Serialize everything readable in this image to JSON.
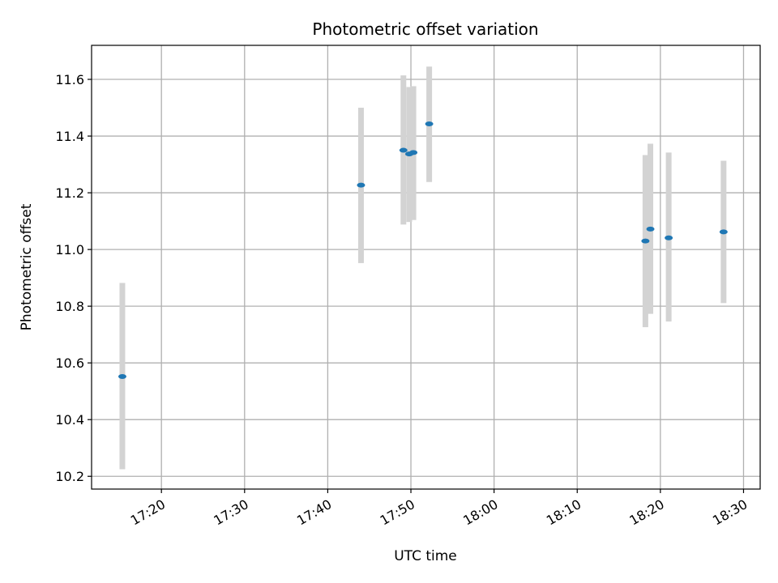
{
  "chart_data": {
    "type": "scatter",
    "title": "Photometric offset variation",
    "xlabel": "UTC time",
    "ylabel": "Photometric offset",
    "x_unit": "minutes since 17:00 UTC",
    "xlim": [
      11.6,
      92.0
    ],
    "ylim": [
      10.155,
      11.72
    ],
    "grid": true,
    "x_ticks": [
      {
        "value": 20,
        "label": "17:20"
      },
      {
        "value": 30,
        "label": "17:30"
      },
      {
        "value": 40,
        "label": "17:40"
      },
      {
        "value": 50,
        "label": "17:50"
      },
      {
        "value": 60,
        "label": "18:00"
      },
      {
        "value": 70,
        "label": "18:10"
      },
      {
        "value": 80,
        "label": "18:20"
      },
      {
        "value": 90,
        "label": "18:30"
      }
    ],
    "y_ticks": [
      {
        "value": 10.2,
        "label": "10.2"
      },
      {
        "value": 10.4,
        "label": "10.4"
      },
      {
        "value": 10.6,
        "label": "10.6"
      },
      {
        "value": 10.8,
        "label": "10.8"
      },
      {
        "value": 11.0,
        "label": "11.0"
      },
      {
        "value": 11.2,
        "label": "11.2"
      },
      {
        "value": 11.4,
        "label": "11.4"
      },
      {
        "value": 11.6,
        "label": "11.6"
      }
    ],
    "series": [
      {
        "name": "Photometric offset",
        "color": "#1f77b4",
        "error_color": "#d3d3d3",
        "points": [
          {
            "x": 15.3,
            "y": 10.552,
            "yerr_low": 10.225,
            "yerr_high": 10.882
          },
          {
            "x": 44.0,
            "y": 11.227,
            "yerr_low": 10.952,
            "yerr_high": 11.5
          },
          {
            "x": 49.1,
            "y": 11.35,
            "yerr_low": 11.088,
            "yerr_high": 11.614
          },
          {
            "x": 49.8,
            "y": 11.337,
            "yerr_low": 11.097,
            "yerr_high": 11.573
          },
          {
            "x": 50.3,
            "y": 11.342,
            "yerr_low": 11.104,
            "yerr_high": 11.576
          },
          {
            "x": 52.2,
            "y": 11.443,
            "yerr_low": 11.238,
            "yerr_high": 11.645
          },
          {
            "x": 78.2,
            "y": 11.03,
            "yerr_low": 10.726,
            "yerr_high": 11.333
          },
          {
            "x": 78.8,
            "y": 11.072,
            "yerr_low": 10.773,
            "yerr_high": 11.373
          },
          {
            "x": 81.0,
            "y": 11.041,
            "yerr_low": 10.746,
            "yerr_high": 11.342
          },
          {
            "x": 87.6,
            "y": 11.062,
            "yerr_low": 10.811,
            "yerr_high": 11.313
          }
        ]
      }
    ]
  }
}
